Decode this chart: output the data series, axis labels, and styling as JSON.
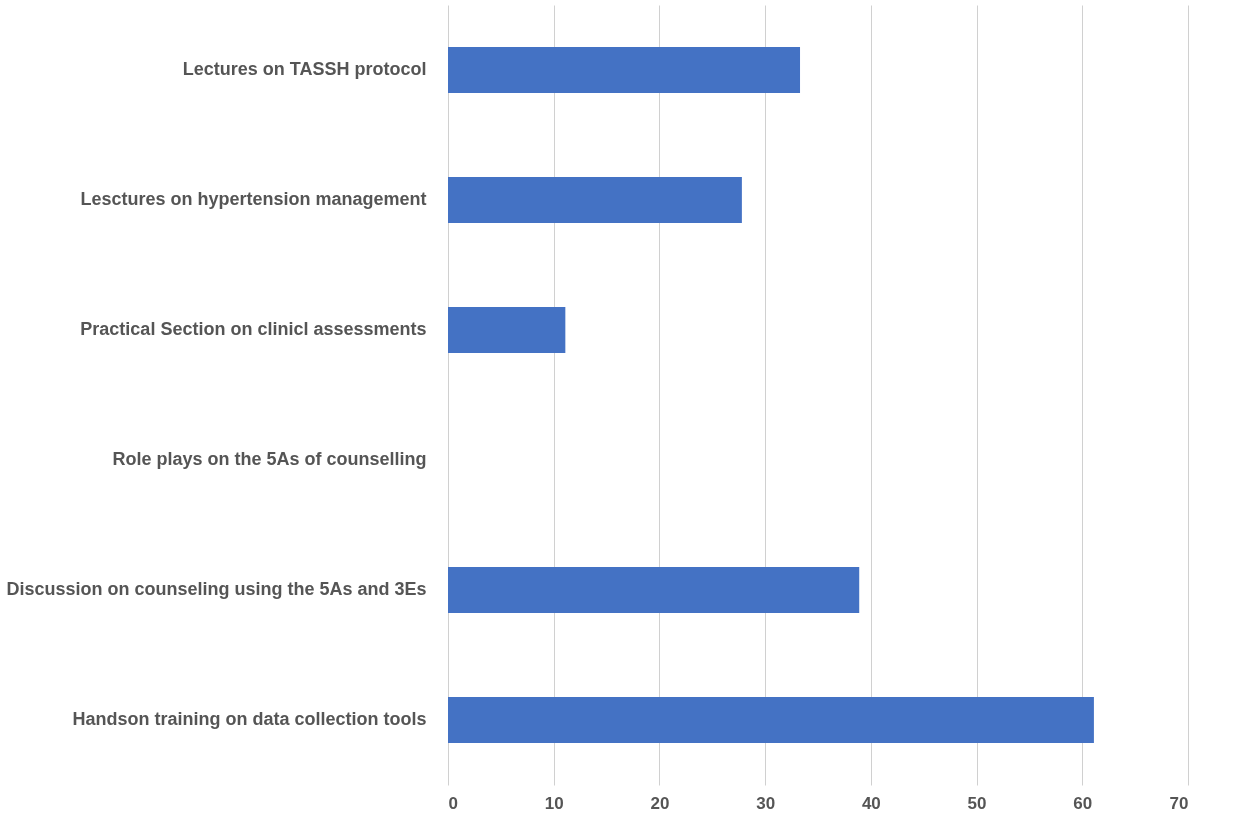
{
  "chart_data": {
    "type": "bar",
    "orientation": "horizontal",
    "categories": [
      "Lectures on TASSH protocol",
      "Lesctures on hypertension management",
      "Practical Section on clinicl assessments",
      "Role plays on the 5As of counselling",
      "Discussion on counseling using the 5As and 3Es",
      "Handson training on data collection tools"
    ],
    "values": [
      33.3,
      27.8,
      11.1,
      0,
      38.9,
      61.1
    ],
    "color": "#4472c4",
    "xlim": [
      0,
      70
    ],
    "xticks": [
      0,
      10,
      20,
      30,
      40,
      50,
      60,
      70
    ],
    "grid": "x"
  }
}
